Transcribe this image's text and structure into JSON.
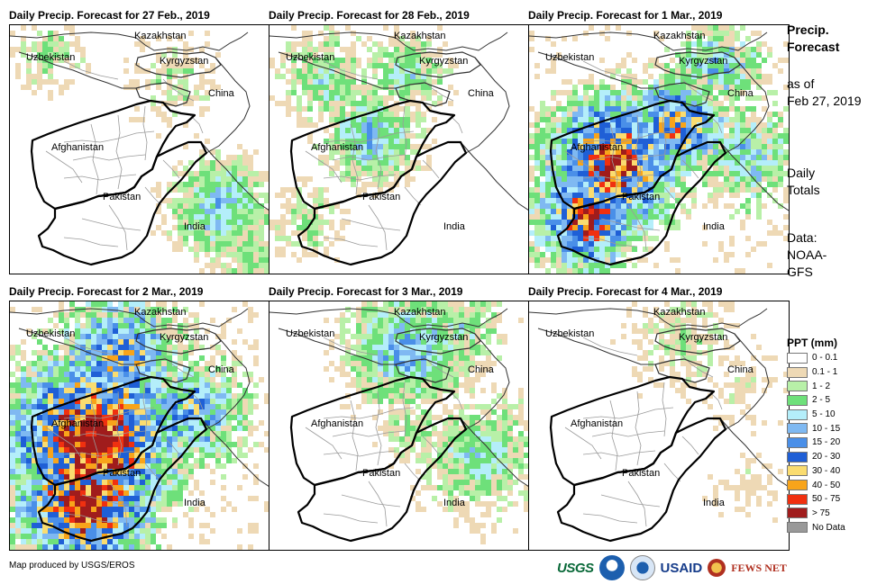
{
  "panels": [
    {
      "title": "Daily Precip. Forecast for 27 Feb., 2019"
    },
    {
      "title": "Daily Precip. Forecast for 28 Feb., 2019"
    },
    {
      "title": "Daily Precip. Forecast for 1 Mar., 2019"
    },
    {
      "title": "Daily Precip. Forecast for 2 Mar., 2019"
    },
    {
      "title": "Daily Precip. Forecast for 3 Mar., 2019"
    },
    {
      "title": "Daily Precip. Forecast for 4 Mar., 2019"
    }
  ],
  "map_labels": {
    "kazakhstan": "Kazakhstan",
    "uzbekistan": "Uzbekistan",
    "kyrgyzstan": "Kyrgyzstan",
    "china": "China",
    "afghanistan": "Afghanistan",
    "pakistan": "Pakistan",
    "india": "India"
  },
  "side": {
    "title_line1": "Precip.",
    "title_line2": "Forecast",
    "asof_line1": "as of",
    "asof_line2": "Feb 27, 2019",
    "totals_line1": "Daily",
    "totals_line2": "Totals",
    "data_line1": "Data:",
    "data_line2": "NOAA-",
    "data_line3": "GFS"
  },
  "legend": {
    "title": "PPT (mm)",
    "items": [
      {
        "label": "0 - 0.1",
        "color": "#ffffff"
      },
      {
        "label": "0.1 - 1",
        "color": "#eed9b5"
      },
      {
        "label": "1 - 2",
        "color": "#b8f0a8"
      },
      {
        "label": "2 - 5",
        "color": "#6ee07a"
      },
      {
        "label": "5 - 10",
        "color": "#b4eefa"
      },
      {
        "label": "10 - 15",
        "color": "#7fb9f2"
      },
      {
        "label": "15 - 20",
        "color": "#4a8fe8"
      },
      {
        "label": "20 - 30",
        "color": "#1f5fd6"
      },
      {
        "label": "30 - 40",
        "color": "#fadc70"
      },
      {
        "label": "40 - 50",
        "color": "#f8a41a"
      },
      {
        "label": "50 - 75",
        "color": "#f03010"
      },
      {
        "label": "> 75",
        "color": "#a01c1c"
      },
      {
        "label": "No Data",
        "color": "#999999"
      }
    ]
  },
  "credit": "Map produced by USGS/EROS",
  "logos": {
    "usgs": "USGS",
    "usaid": "USAID",
    "fews": "FEWS NET"
  },
  "intensity": [
    0.35,
    0.45,
    0.8,
    0.9,
    0.45,
    0.15
  ]
}
